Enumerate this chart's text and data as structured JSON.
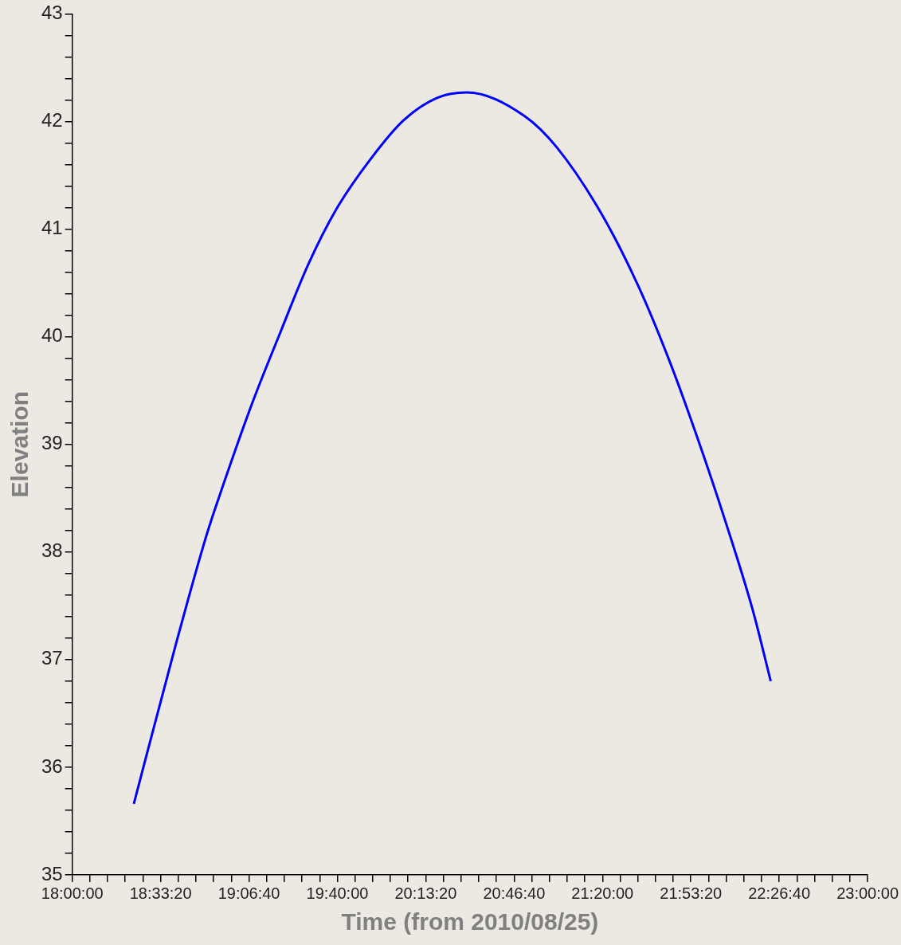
{
  "chart_data": {
    "type": "line",
    "xlabel": "Time (from 2010/08/25)",
    "ylabel": "Elevation",
    "color": "#0000ff",
    "x": [
      18.387,
      18.651,
      18.847,
      18.953,
      19.128,
      19.308,
      19.483,
      19.658,
      19.87,
      20.082,
      20.293,
      20.48,
      20.844,
      21.046,
      21.332,
      21.559,
      21.761,
      21.935,
      22.105,
      22.28,
      22.391
    ],
    "values": [
      35.66,
      37.14,
      38.17,
      38.64,
      39.37,
      40.04,
      40.67,
      41.18,
      41.64,
      42.01,
      42.22,
      42.27,
      42.05,
      41.76,
      41.13,
      40.47,
      39.75,
      39.04,
      38.29,
      37.45,
      36.8
    ],
    "xlim": [
      18,
      23
    ],
    "ylim": [
      35,
      43
    ],
    "xticks": [
      {
        "value": 18,
        "label": "18:00:00"
      },
      {
        "value": 18.1111,
        "label": null
      },
      {
        "value": 18.2222,
        "label": null
      },
      {
        "value": 18.3333,
        "label": null
      },
      {
        "value": 18.4444,
        "label": null
      },
      {
        "value": 18.5556,
        "label": "18:33:20"
      },
      {
        "value": 18.6667,
        "label": null
      },
      {
        "value": 18.7778,
        "label": null
      },
      {
        "value": 18.8889,
        "label": null
      },
      {
        "value": 19,
        "label": null
      },
      {
        "value": 19.1111,
        "label": "19:06:40"
      },
      {
        "value": 19.2222,
        "label": null
      },
      {
        "value": 19.3333,
        "label": null
      },
      {
        "value": 19.4444,
        "label": null
      },
      {
        "value": 19.5556,
        "label": null
      },
      {
        "value": 19.6667,
        "label": "19:40:00"
      },
      {
        "value": 19.7778,
        "label": null
      },
      {
        "value": 19.8889,
        "label": null
      },
      {
        "value": 20,
        "label": null
      },
      {
        "value": 20.1111,
        "label": null
      },
      {
        "value": 20.2222,
        "label": "20:13:20"
      },
      {
        "value": 20.3333,
        "label": null
      },
      {
        "value": 20.4444,
        "label": null
      },
      {
        "value": 20.5556,
        "label": null
      },
      {
        "value": 20.6667,
        "label": null
      },
      {
        "value": 20.7778,
        "label": "20:46:40"
      },
      {
        "value": 20.8889,
        "label": null
      },
      {
        "value": 21,
        "label": null
      },
      {
        "value": 21.1111,
        "label": null
      },
      {
        "value": 21.2222,
        "label": null
      },
      {
        "value": 21.3333,
        "label": "21:20:00"
      },
      {
        "value": 21.4444,
        "label": null
      },
      {
        "value": 21.5556,
        "label": null
      },
      {
        "value": 21.6667,
        "label": null
      },
      {
        "value": 21.7778,
        "label": null
      },
      {
        "value": 21.8889,
        "label": "21:53:20"
      },
      {
        "value": 22,
        "label": null
      },
      {
        "value": 22.1111,
        "label": null
      },
      {
        "value": 22.2222,
        "label": null
      },
      {
        "value": 22.3333,
        "label": null
      },
      {
        "value": 22.4444,
        "label": "22:26:40"
      },
      {
        "value": 22.5556,
        "label": null
      },
      {
        "value": 22.6667,
        "label": null
      },
      {
        "value": 22.7778,
        "label": null
      },
      {
        "value": 22.8889,
        "label": null
      },
      {
        "value": 23,
        "label": "23:00:00"
      }
    ],
    "yticks": [
      35,
      {
        "value": 35.2,
        "label": null
      },
      {
        "value": 35.4,
        "label": null
      },
      {
        "value": 35.6,
        "label": null
      },
      {
        "value": 35.8,
        "label": null
      },
      36,
      {
        "value": 36.2,
        "label": null
      },
      {
        "value": 36.4,
        "label": null
      },
      {
        "value": 36.6,
        "label": null
      },
      {
        "value": 36.8,
        "label": null
      },
      37,
      {
        "value": 37.2,
        "label": null
      },
      {
        "value": 37.4,
        "label": null
      },
      {
        "value": 37.6,
        "label": null
      },
      {
        "value": 37.8,
        "label": null
      },
      38,
      {
        "value": 38.2,
        "label": null
      },
      {
        "value": 38.4,
        "label": null
      },
      {
        "value": 38.6,
        "label": null
      },
      {
        "value": 38.8,
        "label": null
      },
      39,
      {
        "value": 39.2,
        "label": null
      },
      {
        "value": 39.4,
        "label": null
      },
      {
        "value": 39.6,
        "label": null
      },
      {
        "value": 39.8,
        "label": null
      },
      40,
      {
        "value": 40.2,
        "label": null
      },
      {
        "value": 40.4,
        "label": null
      },
      {
        "value": 40.6,
        "label": null
      },
      {
        "value": 40.8,
        "label": null
      },
      41,
      {
        "value": 41.2,
        "label": null
      },
      {
        "value": 41.4,
        "label": null
      },
      {
        "value": 41.6,
        "label": null
      },
      {
        "value": 41.8,
        "label": null
      },
      42,
      {
        "value": 42.2,
        "label": null
      },
      {
        "value": 42.4,
        "label": null
      },
      {
        "value": 42.6,
        "label": null
      },
      {
        "value": 42.8,
        "label": null
      },
      43
    ]
  }
}
